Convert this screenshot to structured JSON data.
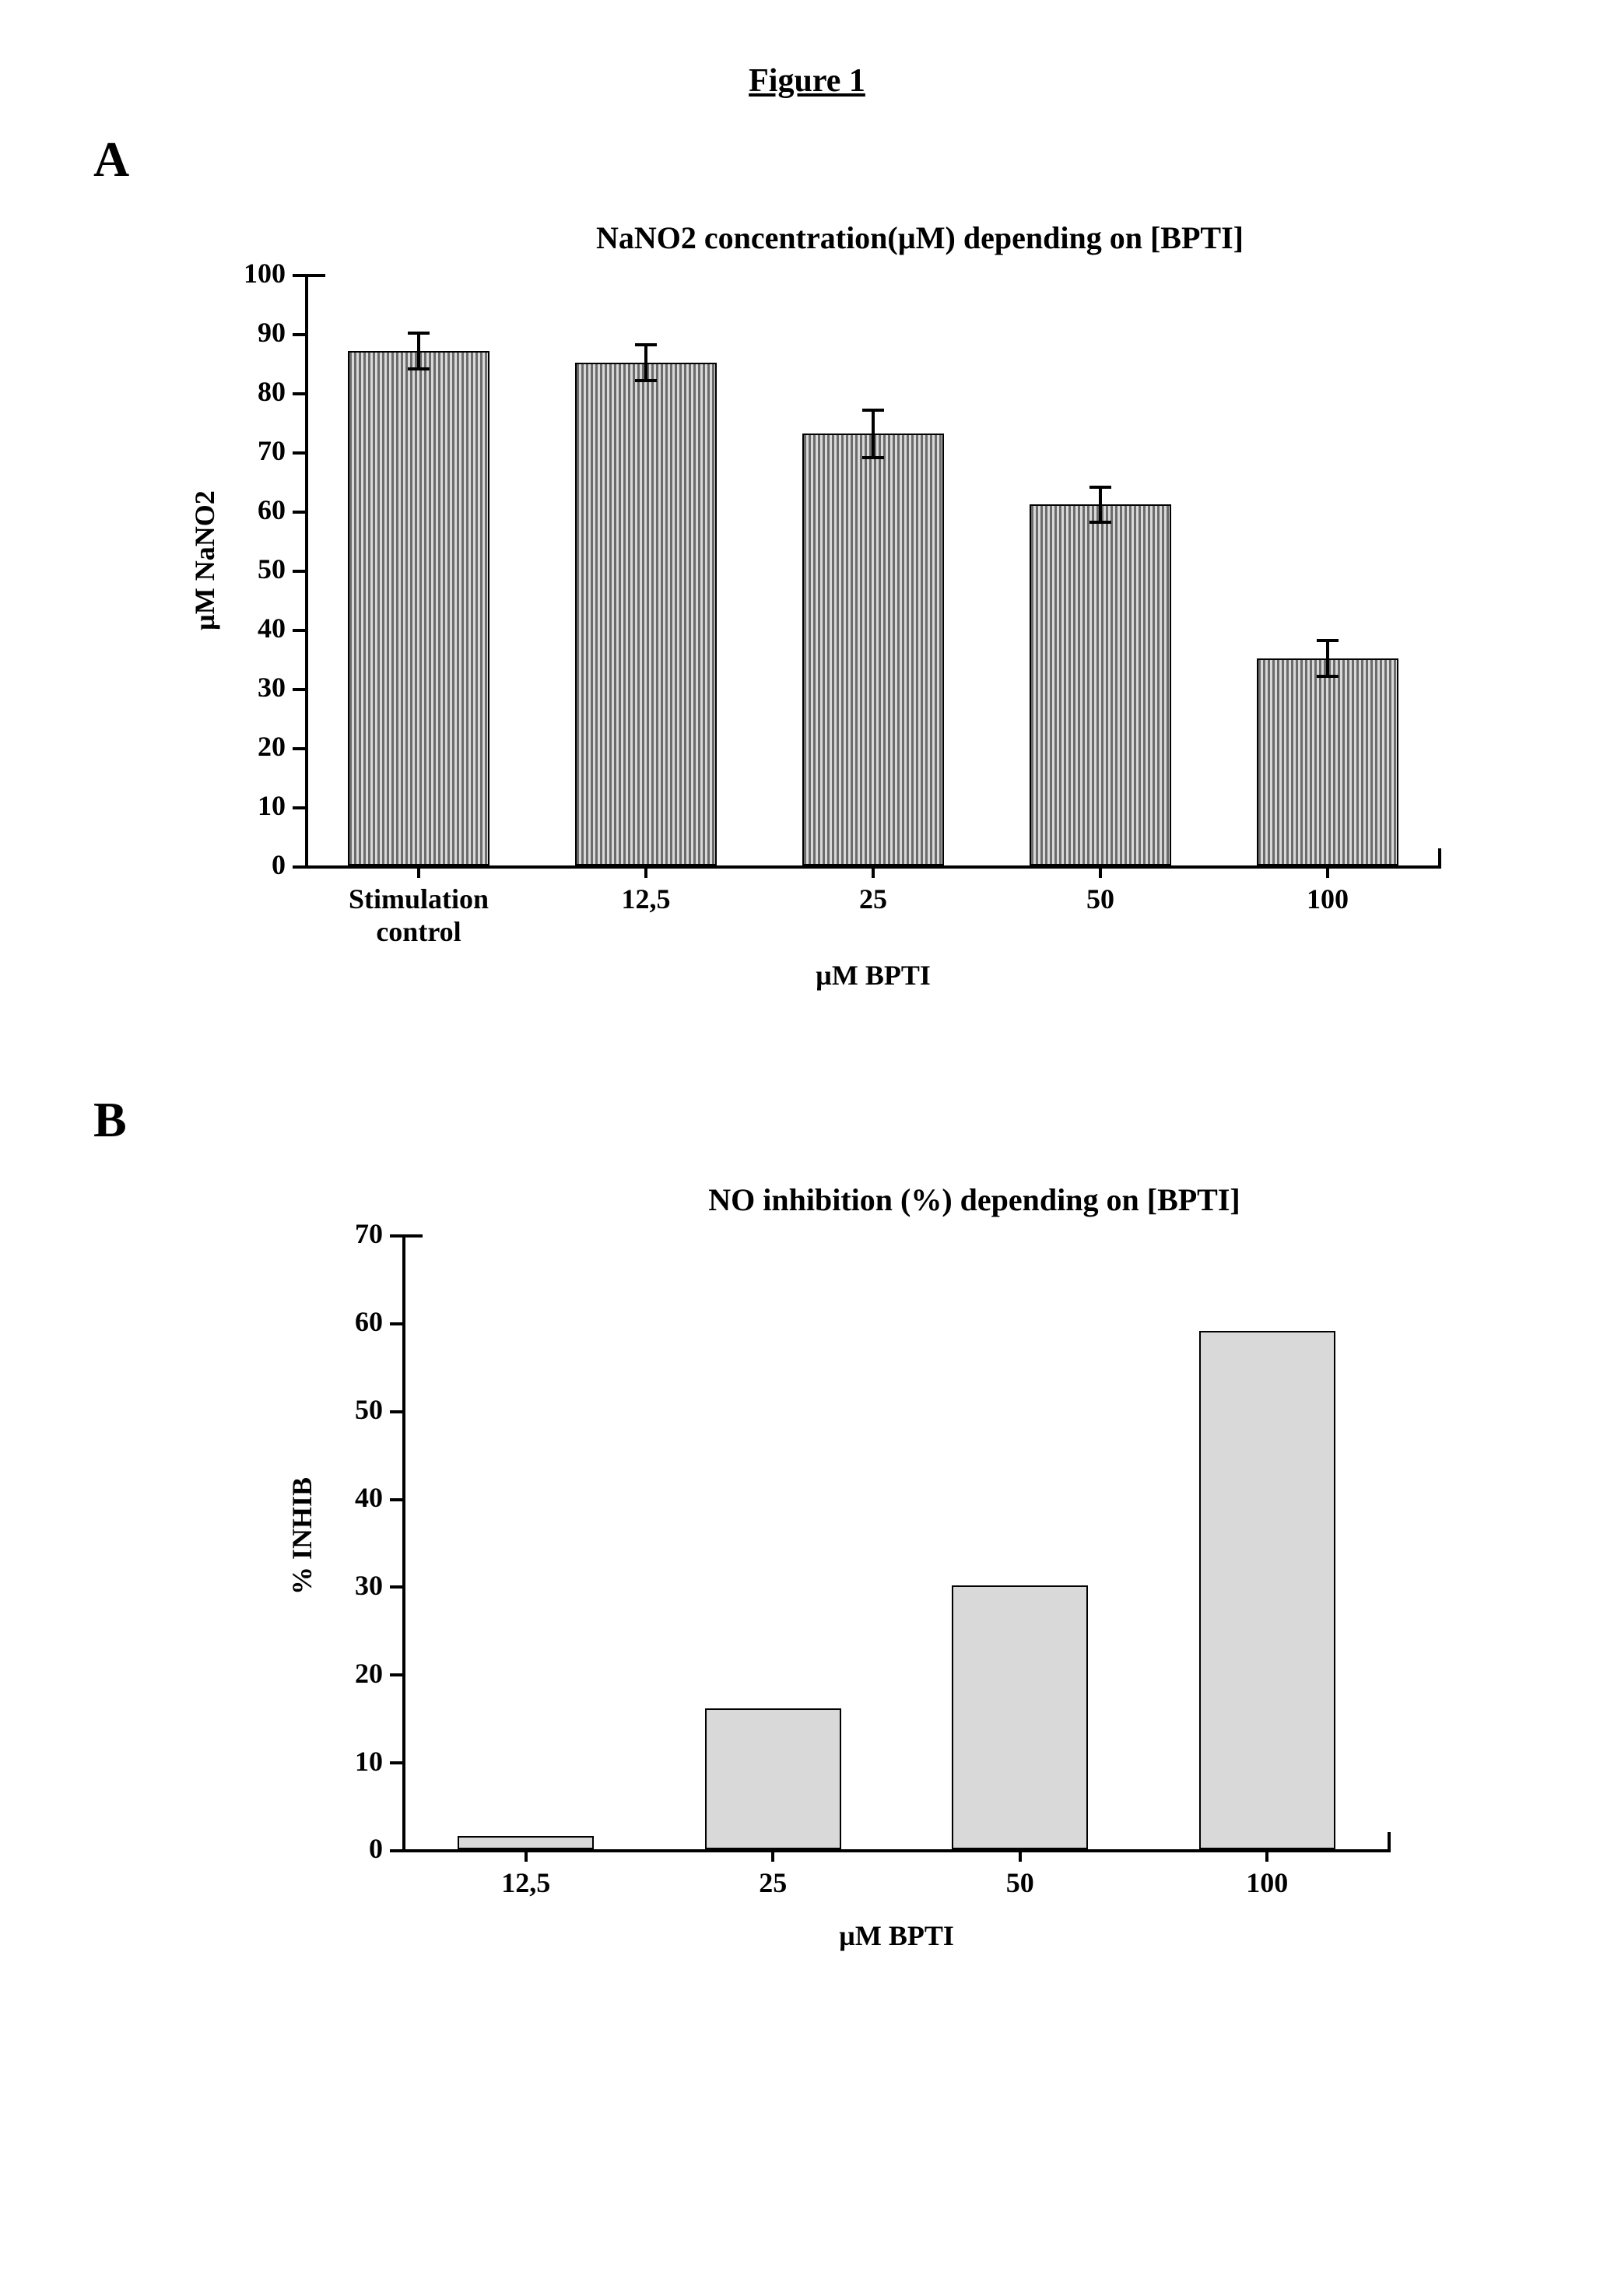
{
  "figure_title": "Figure 1",
  "panelA": {
    "letter": "A",
    "chart": {
      "type": "bar",
      "title": "NaNO2 concentration(µM) depending on [BPTI]",
      "title_fontsize": 40,
      "title_fontweight": "bold",
      "ylabel": "µM NaNO2",
      "xlabel": "µM BPTI",
      "label_fontsize": 36,
      "tick_fontsize": 36,
      "ylim": [
        0,
        100
      ],
      "ytick_step": 10,
      "bar_fill_pattern": "vertical-stripes",
      "bar_stripe_color": "#6b6b6b",
      "bar_stripe_bg": "#d9d9d9",
      "bar_border_color": "#000000",
      "bar_width_rel": 0.62,
      "background_color": "#ffffff",
      "axis_color": "#000000",
      "error_bar_color": "#000000",
      "categories": [
        "Stimulation control",
        "12,5",
        "25",
        "50",
        "100"
      ],
      "category_labels": [
        "Stimulation\ncontrol",
        "12,5",
        "25",
        "50",
        "100"
      ],
      "values": [
        87,
        85,
        73,
        61,
        35
      ],
      "errors": [
        3,
        3,
        4,
        3,
        3
      ]
    }
  },
  "panelB": {
    "letter": "B",
    "chart": {
      "type": "bar",
      "title": "NO inhibition (%) depending on [BPTI]",
      "title_fontsize": 40,
      "title_fontweight": "bold",
      "ylabel": "% INHIB",
      "xlabel": "µM BPTI",
      "label_fontsize": 36,
      "tick_fontsize": 36,
      "ylim": [
        0,
        70
      ],
      "ytick_step": 10,
      "bar_fill": "#d9d9d9",
      "bar_border_color": "#000000",
      "bar_width_rel": 0.55,
      "background_color": "#ffffff",
      "axis_color": "#000000",
      "categories": [
        "12,5",
        "25",
        "50",
        "100"
      ],
      "values": [
        1.5,
        16,
        30,
        59
      ]
    }
  }
}
